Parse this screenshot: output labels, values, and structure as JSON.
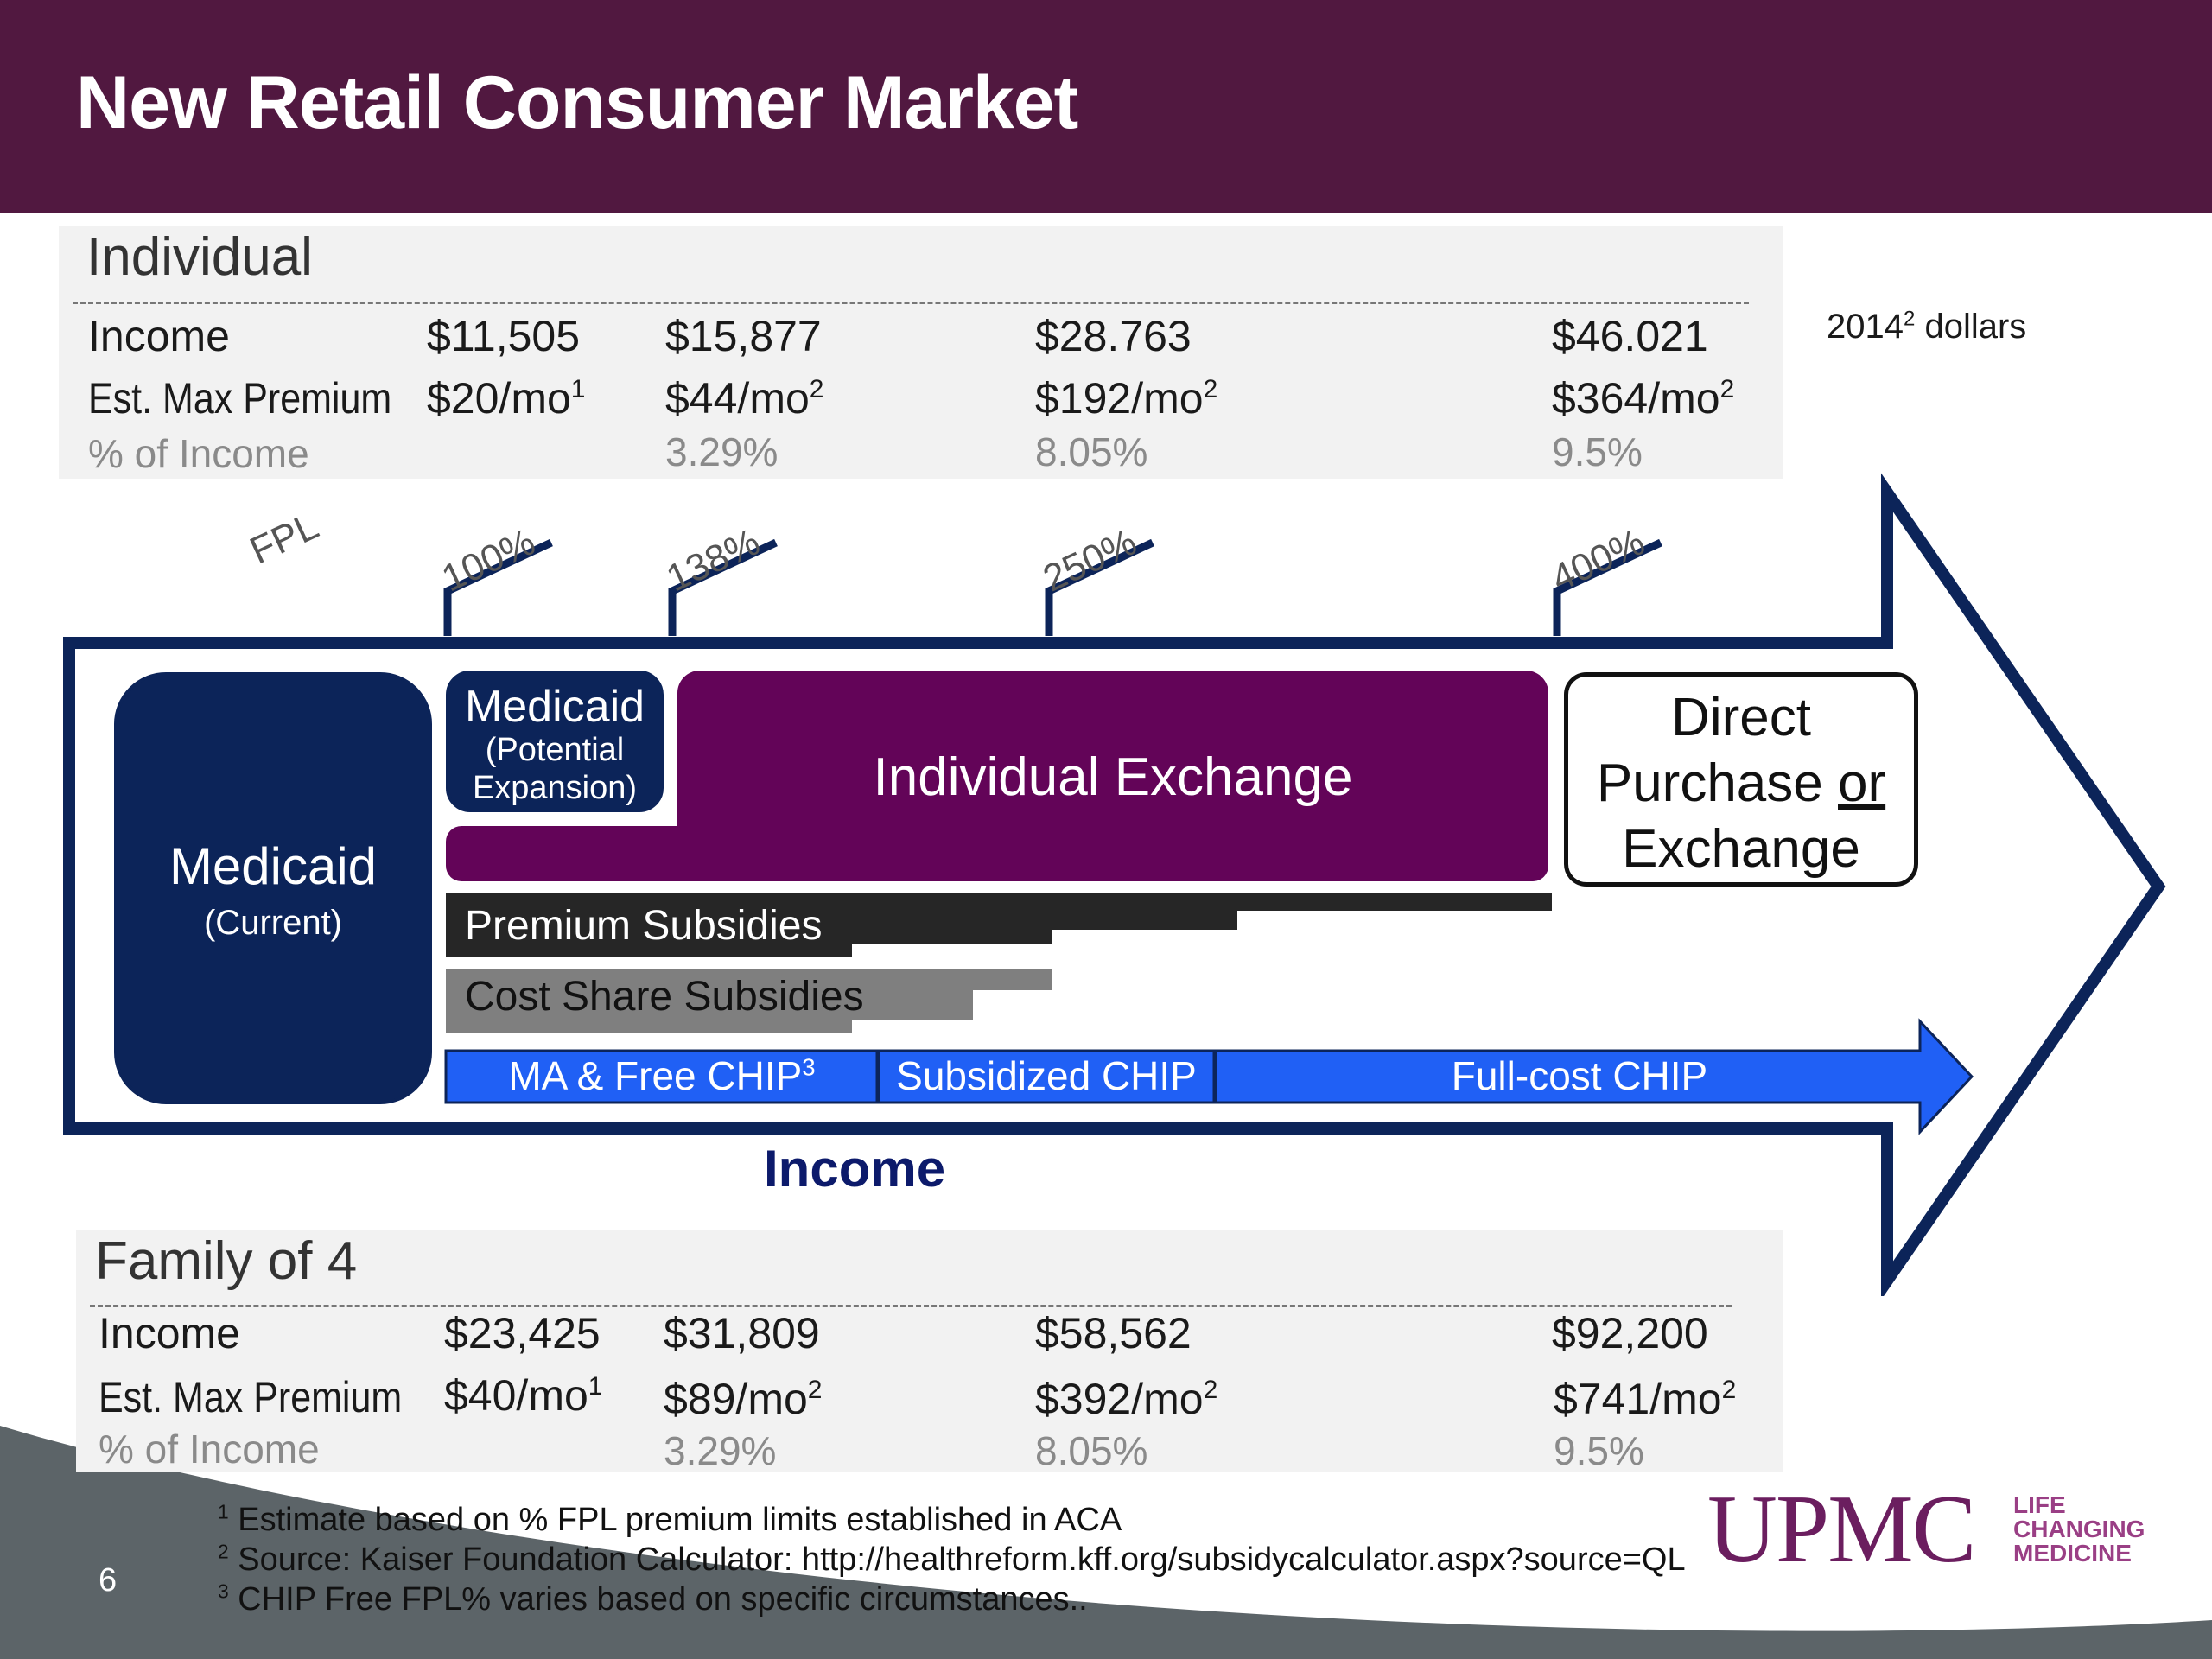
{
  "slide": {
    "title": "New Retail Consumer Market",
    "page_number": "6",
    "dollars_note_year": "2014",
    "dollars_note_sup": "2",
    "dollars_note_suffix": " dollars"
  },
  "individual": {
    "title": "Individual",
    "row_labels": {
      "income": "Income",
      "premium": "Est. Max Premium",
      "percent": "% of Income"
    },
    "income": [
      "$11,505",
      "$15,877",
      "$28.763",
      "$46.021"
    ],
    "premium": [
      {
        "value": "$20/mo",
        "sup": "1"
      },
      {
        "value": "$44/mo",
        "sup": "2"
      },
      {
        "value": "$192/mo",
        "sup": "2"
      },
      {
        "value": "$364/mo",
        "sup": "2"
      }
    ],
    "percent": [
      "3.29%",
      "8.05%",
      "9.5%"
    ]
  },
  "family": {
    "title": "Family of 4",
    "row_labels": {
      "income": "Income",
      "premium": "Est. Max Premium",
      "percent": "% of Income"
    },
    "income": [
      "$23,425",
      "$31,809",
      "$58,562",
      "$92,200"
    ],
    "premium": [
      {
        "value": "$40/mo",
        "sup": "1"
      },
      {
        "value": "$89/mo",
        "sup": "2"
      },
      {
        "value": "$392/mo",
        "sup": "2"
      },
      {
        "value": "$741/mo",
        "sup": "2"
      }
    ],
    "percent": [
      "3.29%",
      "8.05%",
      "9.5%"
    ]
  },
  "fpl": {
    "label": "FPL",
    "markers": [
      "100%",
      "138%",
      "250%",
      "400%"
    ]
  },
  "diagram": {
    "medicaid_current": {
      "title": "Medicaid",
      "sub": "(Current)"
    },
    "medicaid_expansion": {
      "title": "Medicaid",
      "sub1": "(Potential",
      "sub2": "Expansion)"
    },
    "individual_exchange": "Individual Exchange",
    "direct_purchase": {
      "line1": "Direct",
      "line2_a": "Purchase ",
      "line2_b": "or",
      "line3": "Exchange"
    },
    "premium_subsidies": "Premium Subsidies",
    "cost_share_subsidies": "Cost Share Subsidies",
    "chip": {
      "free_label": "MA & Free CHIP",
      "free_sup": "3",
      "subsidized": "Subsidized CHIP",
      "full_cost": "Full-cost CHIP"
    },
    "axis_label": "Income"
  },
  "footnotes": [
    {
      "num": "1",
      "text": "Estimate based on % FPL premium limits established in ACA"
    },
    {
      "num": "2",
      "text": "Source: Kaiser Foundation Calculator: http://healthreform.kff.org/subsidycalculator.aspx?source=QL"
    },
    {
      "num": "3",
      "text": "CHIP Free FPL% varies based on specific circumstances.."
    }
  ],
  "logo": {
    "wordmark": "UPMC",
    "tag1": "LIFE",
    "tag2": "CHANGING",
    "tag3": "MEDICINE"
  },
  "colors": {
    "header": "#511840",
    "navy": "#0c2459",
    "purple": "#630458",
    "chip_blue": "#2060f5",
    "footer_gray": "#5c6468"
  }
}
